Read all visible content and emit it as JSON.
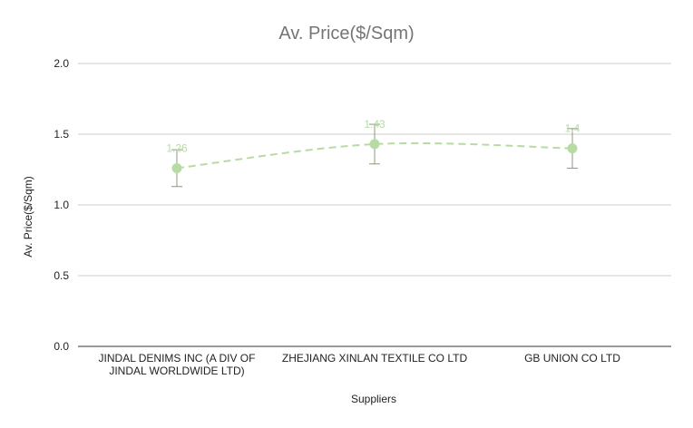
{
  "chart_data": {
    "type": "line",
    "title": "Av. Price($/Sqm)",
    "xlabel": "Suppliers",
    "ylabel": "Av. Price($/Sqm)",
    "ylim": [
      0,
      2.0
    ],
    "yticks": [
      "0.0",
      "0.5",
      "1.0",
      "1.5",
      "2.0"
    ],
    "grid": true,
    "legend": "none",
    "line_style": "dashed",
    "categories": [
      [
        "JINDAL DENIMS INC (A DIV OF",
        "JINDAL WORLDWIDE LTD)"
      ],
      [
        "ZHEJIANG XINLAN TEXTILE CO LTD"
      ],
      [
        "GB UNION CO LTD"
      ]
    ],
    "series": [
      {
        "values": [
          1.26,
          1.43,
          1.4
        ],
        "data_labels": [
          "1.26",
          "1.43",
          "1.4"
        ],
        "error_bars": [
          [
            1.13,
            1.39
          ],
          [
            1.29,
            1.57
          ],
          [
            1.26,
            1.54
          ]
        ]
      }
    ],
    "colors": {
      "series": "#b7dba5",
      "error_bar": "#8d9a7c",
      "data_label": "#b7dba5",
      "grid": "#cccccc",
      "axis": "#333333",
      "title": "#757575"
    }
  }
}
